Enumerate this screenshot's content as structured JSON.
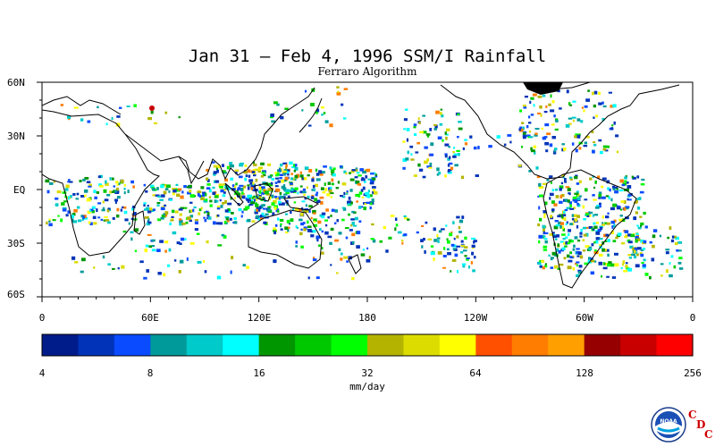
{
  "title": "Jan 31 – Feb 4, 1996 SSM/I Rainfall",
  "subtitle": "Ferraro Algorithm",
  "lat_labels": [
    "60N",
    "30N",
    "EQ",
    "30S",
    "60S"
  ],
  "lon_labels": [
    "0",
    "60E",
    "120E",
    "180",
    "120W",
    "60W",
    "0"
  ],
  "colorbar": {
    "unit": "mm/day",
    "tick_labels": [
      "4",
      "8",
      "16",
      "32",
      "64",
      "128",
      "256"
    ],
    "colors": [
      "#001c8a",
      "#0033b8",
      "#0a4bff",
      "#009a9a",
      "#00caca",
      "#00ffff",
      "#009600",
      "#00c800",
      "#00ff00",
      "#b3b300",
      "#dcdc00",
      "#ffff00",
      "#ff5000",
      "#ff7d00",
      "#ffa000",
      "#960000",
      "#c80000",
      "#ff0000"
    ]
  },
  "logo": {
    "text": "NOAA",
    "cdc_letters": [
      "C",
      "D",
      "C"
    ]
  },
  "map": {
    "type": "global rainfall map",
    "projection": "cylindrical equidistant",
    "lon_range": "0 to 360 (0 at center-left)",
    "lat_range": "60S to 60N",
    "regions_with_rain": [
      "Indian Ocean ITCZ",
      "Maritime Continent",
      "South Pacific Convergence Zone",
      "Central Africa",
      "Amazon basin",
      "North Pacific storm track",
      "North Atlantic storm track",
      "Southern Africa",
      "Southern Indian Ocean"
    ]
  }
}
